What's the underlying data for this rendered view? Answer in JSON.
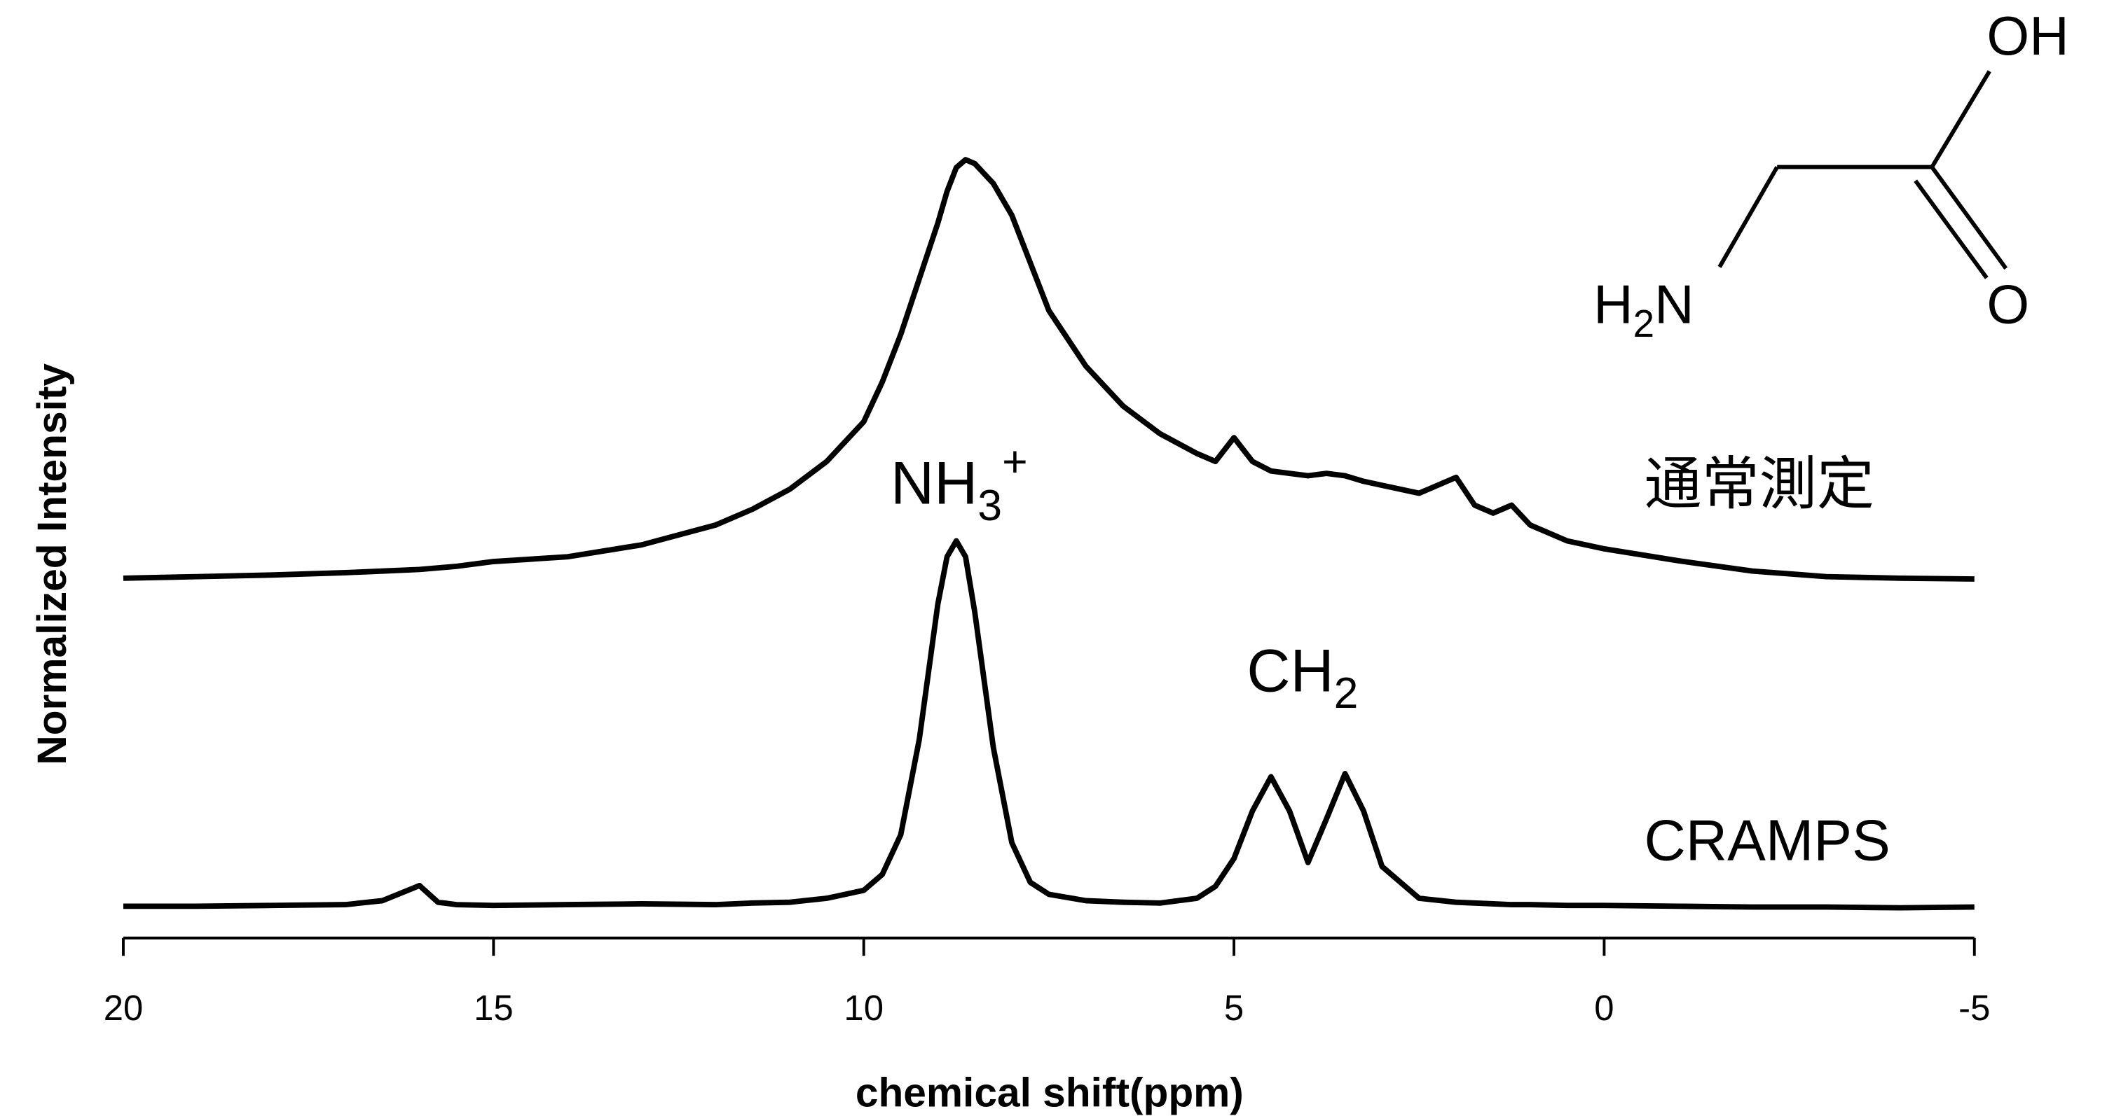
{
  "chart_data": {
    "type": "line",
    "xlabel": "chemical shift(ppm)",
    "ylabel": "Normalized Intensity",
    "x": [
      20,
      19,
      18,
      17,
      16.5,
      16,
      15.75,
      15.5,
      15,
      14,
      13,
      12,
      11.5,
      11,
      10.5,
      10,
      9.75,
      9.5,
      9.25,
      9,
      8.875,
      8.75,
      8.625,
      8.5,
      8.25,
      8,
      7.75,
      7.5,
      7,
      6.5,
      6,
      5.5,
      5.25,
      5,
      4.75,
      4.5,
      4.25,
      4,
      3.75,
      3.5,
      3.25,
      3,
      2.5,
      2,
      1.75,
      1.5,
      1.25,
      1,
      0.5,
      0,
      -1,
      -2,
      -3,
      -4,
      -5
    ],
    "series": [
      {
        "name": "通常測定",
        "color": "#000000",
        "values": [
          0.453,
          0.455,
          0.457,
          0.46,
          0.462,
          0.464,
          0.466,
          0.468,
          0.474,
          0.48,
          0.495,
          0.52,
          0.54,
          0.565,
          0.6,
          0.65,
          0.7,
          0.76,
          0.83,
          0.9,
          0.94,
          0.97,
          0.98,
          0.975,
          0.95,
          0.91,
          0.85,
          0.79,
          0.72,
          0.67,
          0.635,
          0.61,
          0.6,
          0.63,
          0.6,
          0.588,
          0.585,
          0.582,
          0.585,
          0.582,
          0.575,
          0.57,
          0.56,
          0.58,
          0.545,
          0.535,
          0.545,
          0.52,
          0.5,
          0.49,
          0.475,
          0.462,
          0.455,
          0.453,
          0.452
        ]
      },
      {
        "name": "CRAMPS",
        "color": "#000000",
        "values": [
          0.04,
          0.04,
          0.041,
          0.042,
          0.047,
          0.066,
          0.045,
          0.042,
          0.041,
          0.042,
          0.043,
          0.042,
          0.044,
          0.045,
          0.05,
          0.06,
          0.08,
          0.13,
          0.25,
          0.42,
          0.48,
          0.5,
          0.48,
          0.41,
          0.24,
          0.12,
          0.07,
          0.055,
          0.047,
          0.045,
          0.044,
          0.05,
          0.065,
          0.1,
          0.16,
          0.203,
          0.16,
          0.095,
          0.15,
          0.207,
          0.16,
          0.09,
          0.05,
          0.045,
          0.044,
          0.043,
          0.042,
          0.042,
          0.041,
          0.041,
          0.04,
          0.039,
          0.039,
          0.038,
          0.039
        ]
      }
    ],
    "xlim": [
      20,
      -5
    ],
    "xticks": [
      20,
      15,
      10,
      5,
      0,
      -5
    ],
    "ylim": [
      0,
      1
    ],
    "annotations": [
      {
        "text": "NH",
        "sub": "3",
        "sup": "+"
      },
      {
        "text": "CH",
        "sub": "2"
      }
    ],
    "molecule": {
      "hydroxyl": "OH",
      "carbonyl": "O",
      "amine": "H",
      "amine_sub": "2",
      "amine_rest": "N"
    }
  }
}
